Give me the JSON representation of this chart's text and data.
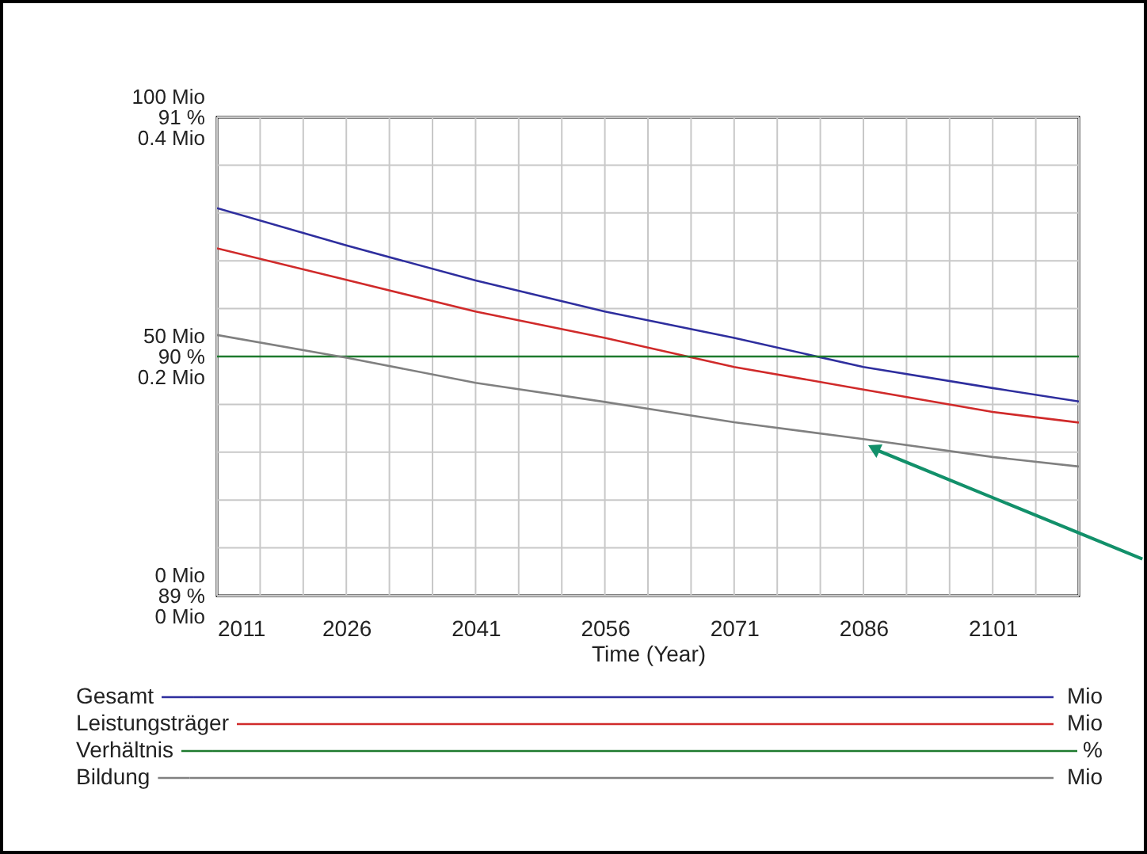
{
  "chart_data": {
    "type": "line",
    "xlabel": "Time (Year)",
    "x": [
      2011,
      2026,
      2041,
      2056,
      2071,
      2086,
      2101,
      2111
    ],
    "series": [
      {
        "name": "Gesamt",
        "color": "#2e2e9e",
        "values": [
          81,
          73.2,
          65.9,
          59.4,
          53.9,
          47.8,
          43.4,
          40.6
        ]
      },
      {
        "name": "Leistungsträger",
        "color": "#d02a2a",
        "values": [
          72.6,
          66,
          59.4,
          53.9,
          47.8,
          43.1,
          38.4,
          36.2
        ]
      },
      {
        "name": "Verhältnis",
        "color": "#1e7a2e",
        "axis": "y2",
        "values": [
          90,
          90,
          90,
          90,
          90,
          90,
          90,
          90
        ]
      },
      {
        "name": "Bildung",
        "color": "#808080",
        "axis": "y3",
        "values": [
          0.218,
          0.199,
          0.178,
          0.162,
          0.145,
          0.131,
          0.116,
          0.108
        ]
      }
    ],
    "xlim": [
      2011,
      2111
    ],
    "xticks": [
      2011,
      {
        "value": 2016,
        "label": null
      },
      {
        "value": 2021,
        "label": null
      },
      2026,
      {
        "value": 2031,
        "label": null
      },
      {
        "value": 2036,
        "label": null
      },
      2041,
      {
        "value": 2046,
        "label": null
      },
      {
        "value": 2051,
        "label": null
      },
      2056,
      {
        "value": 2061,
        "label": null
      },
      {
        "value": 2066,
        "label": null
      },
      2071,
      {
        "value": 2076,
        "label": null
      },
      {
        "value": 2081,
        "label": null
      },
      2086,
      {
        "value": 2091,
        "label": null
      },
      {
        "value": 2096,
        "label": null
      },
      2101,
      {
        "value": 2106,
        "label": null
      },
      {
        "value": 2111,
        "label": null
      }
    ],
    "ylim": [
      0,
      100
    ],
    "yticks": [
      {
        "value": 0,
        "label": "0 Mio"
      },
      {
        "value": 10,
        "label": null
      },
      {
        "value": 20,
        "label": null
      },
      {
        "value": 30,
        "label": null
      },
      {
        "value": 40,
        "label": null
      },
      {
        "value": 50,
        "label": "50 Mio"
      },
      {
        "value": 60,
        "label": null
      },
      {
        "value": 70,
        "label": null
      },
      {
        "value": 80,
        "label": null
      },
      {
        "value": 90,
        "label": null
      },
      {
        "value": 100,
        "label": "100 Mio"
      }
    ],
    "y2lim": [
      89,
      91
    ],
    "y2ticks": [
      {
        "value": 89,
        "label": "89 %"
      },
      {
        "value": 90,
        "label": "90 %"
      },
      {
        "value": 91,
        "label": "91 %"
      }
    ],
    "y3lim": [
      0,
      0.4
    ],
    "y3ticks": [
      {
        "value": 0,
        "label": "0 Mio"
      },
      {
        "value": 0.2,
        "label": "0.2 Mio"
      },
      {
        "value": 0.4,
        "label": "0.4 Mio"
      }
    ],
    "grid": true,
    "legend": "bottom",
    "marker": "none",
    "line_style": "solid",
    "annotations": [
      "Mio",
      "Mio",
      "%",
      "Mio"
    ]
  }
}
